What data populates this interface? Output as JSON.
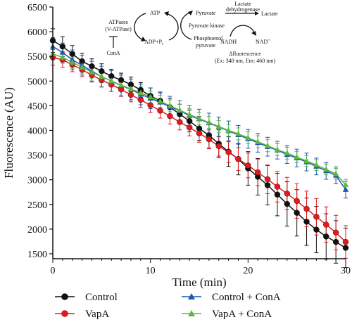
{
  "chart_data": {
    "type": "line",
    "title": "",
    "xlabel": "Time (min)",
    "ylabel": "Fluorescence (AU)",
    "xlim": [
      0,
      30
    ],
    "ylim": [
      1400,
      6500
    ],
    "x_ticks": [
      0,
      10,
      20,
      30
    ],
    "y_ticks": [
      1500,
      2000,
      2500,
      3000,
      3500,
      4000,
      4500,
      5000,
      5500,
      6000,
      6500
    ],
    "x": [
      0,
      1,
      2,
      3,
      4,
      5,
      6,
      7,
      8,
      9,
      10,
      11,
      12,
      13,
      14,
      15,
      16,
      17,
      18,
      19,
      20,
      21,
      22,
      23,
      24,
      25,
      26,
      27,
      28,
      29,
      30
    ],
    "grid": false,
    "legend_position": "bottom",
    "series": [
      {
        "name": "Control",
        "color": "#111111",
        "marker": "circle",
        "values": [
          5820,
          5700,
          5550,
          5400,
          5300,
          5200,
          5100,
          5020,
          4930,
          4820,
          4700,
          4600,
          4470,
          4330,
          4190,
          4040,
          3900,
          3730,
          3570,
          3420,
          3230,
          3060,
          2890,
          2700,
          2510,
          2330,
          2150,
          1990,
          1850,
          1740,
          1620
        ],
        "errors": [
          240,
          200,
          170,
          160,
          150,
          150,
          140,
          140,
          150,
          150,
          160,
          160,
          180,
          200,
          220,
          240,
          260,
          280,
          300,
          320,
          340,
          370,
          400,
          430,
          450,
          470,
          480,
          470,
          460,
          430,
          400
        ]
      },
      {
        "name": "VapA",
        "color": "#e3191c",
        "marker": "circle",
        "values": [
          5480,
          5430,
          5330,
          5230,
          5120,
          5020,
          4930,
          4830,
          4720,
          4620,
          4510,
          4400,
          4290,
          4170,
          4060,
          3940,
          3820,
          3680,
          3560,
          3420,
          3290,
          3150,
          3010,
          2860,
          2720,
          2570,
          2410,
          2250,
          2090,
          1930,
          1740
        ],
        "errors": [
          160,
          150,
          140,
          140,
          140,
          140,
          140,
          140,
          140,
          150,
          150,
          150,
          160,
          160,
          170,
          180,
          190,
          200,
          210,
          230,
          250,
          270,
          290,
          310,
          330,
          350,
          360,
          370,
          360,
          350,
          330
        ]
      },
      {
        "name": "Control + ConA",
        "color": "#2255b0",
        "marker": "triangle",
        "values": [
          5700,
          5580,
          5430,
          5320,
          5200,
          5090,
          5000,
          4910,
          4830,
          4730,
          4650,
          4570,
          4480,
          4400,
          4300,
          4230,
          4150,
          4070,
          3990,
          3910,
          3830,
          3750,
          3670,
          3600,
          3510,
          3440,
          3360,
          3270,
          3180,
          3090,
          2800
        ],
        "errors": [
          180,
          190,
          200,
          200,
          200,
          210,
          210,
          210,
          210,
          210,
          210,
          210,
          210,
          200,
          200,
          200,
          200,
          200,
          200,
          190,
          190,
          190,
          190,
          180,
          180,
          180,
          180,
          170,
          170,
          170,
          170
        ]
      },
      {
        "name": "VapA + ConA",
        "color": "#5ab845",
        "marker": "triangle",
        "values": [
          5550,
          5480,
          5380,
          5280,
          5180,
          5090,
          5000,
          4920,
          4840,
          4760,
          4680,
          4590,
          4500,
          4410,
          4320,
          4240,
          4160,
          4080,
          4000,
          3930,
          3850,
          3770,
          3690,
          3610,
          3540,
          3460,
          3380,
          3300,
          3210,
          3120,
          2900
        ],
        "errors": [
          120,
          120,
          120,
          120,
          120,
          120,
          120,
          120,
          120,
          120,
          120,
          120,
          120,
          120,
          120,
          120,
          120,
          120,
          120,
          120,
          120,
          120,
          120,
          120,
          120,
          110,
          110,
          110,
          110,
          110,
          110
        ]
      }
    ],
    "inset_pathway": {
      "atpases": "ATPases",
      "vatpase": "(V-ATPase)",
      "cona": "ConA",
      "atp": "ATP",
      "adp": "ADP+P",
      "adp_sub": "i",
      "pyruvate": "Pyruvate",
      "pyruvate_kinase": "Pyruvate kinase",
      "phosphoenol1": "Phosphoenol",
      "phosphoenol2": "pyruvate",
      "lactate_dh1": "Lactate",
      "lactate_dh2": "dehydrogenase",
      "lactate": "Lactate",
      "nadh": "NADH",
      "nad": "NAD",
      "nad_sup": "+",
      "delta_fluor": "Δfluorescence",
      "excitation": "(Ex: 340 nm, Em: 460 nm)"
    }
  }
}
